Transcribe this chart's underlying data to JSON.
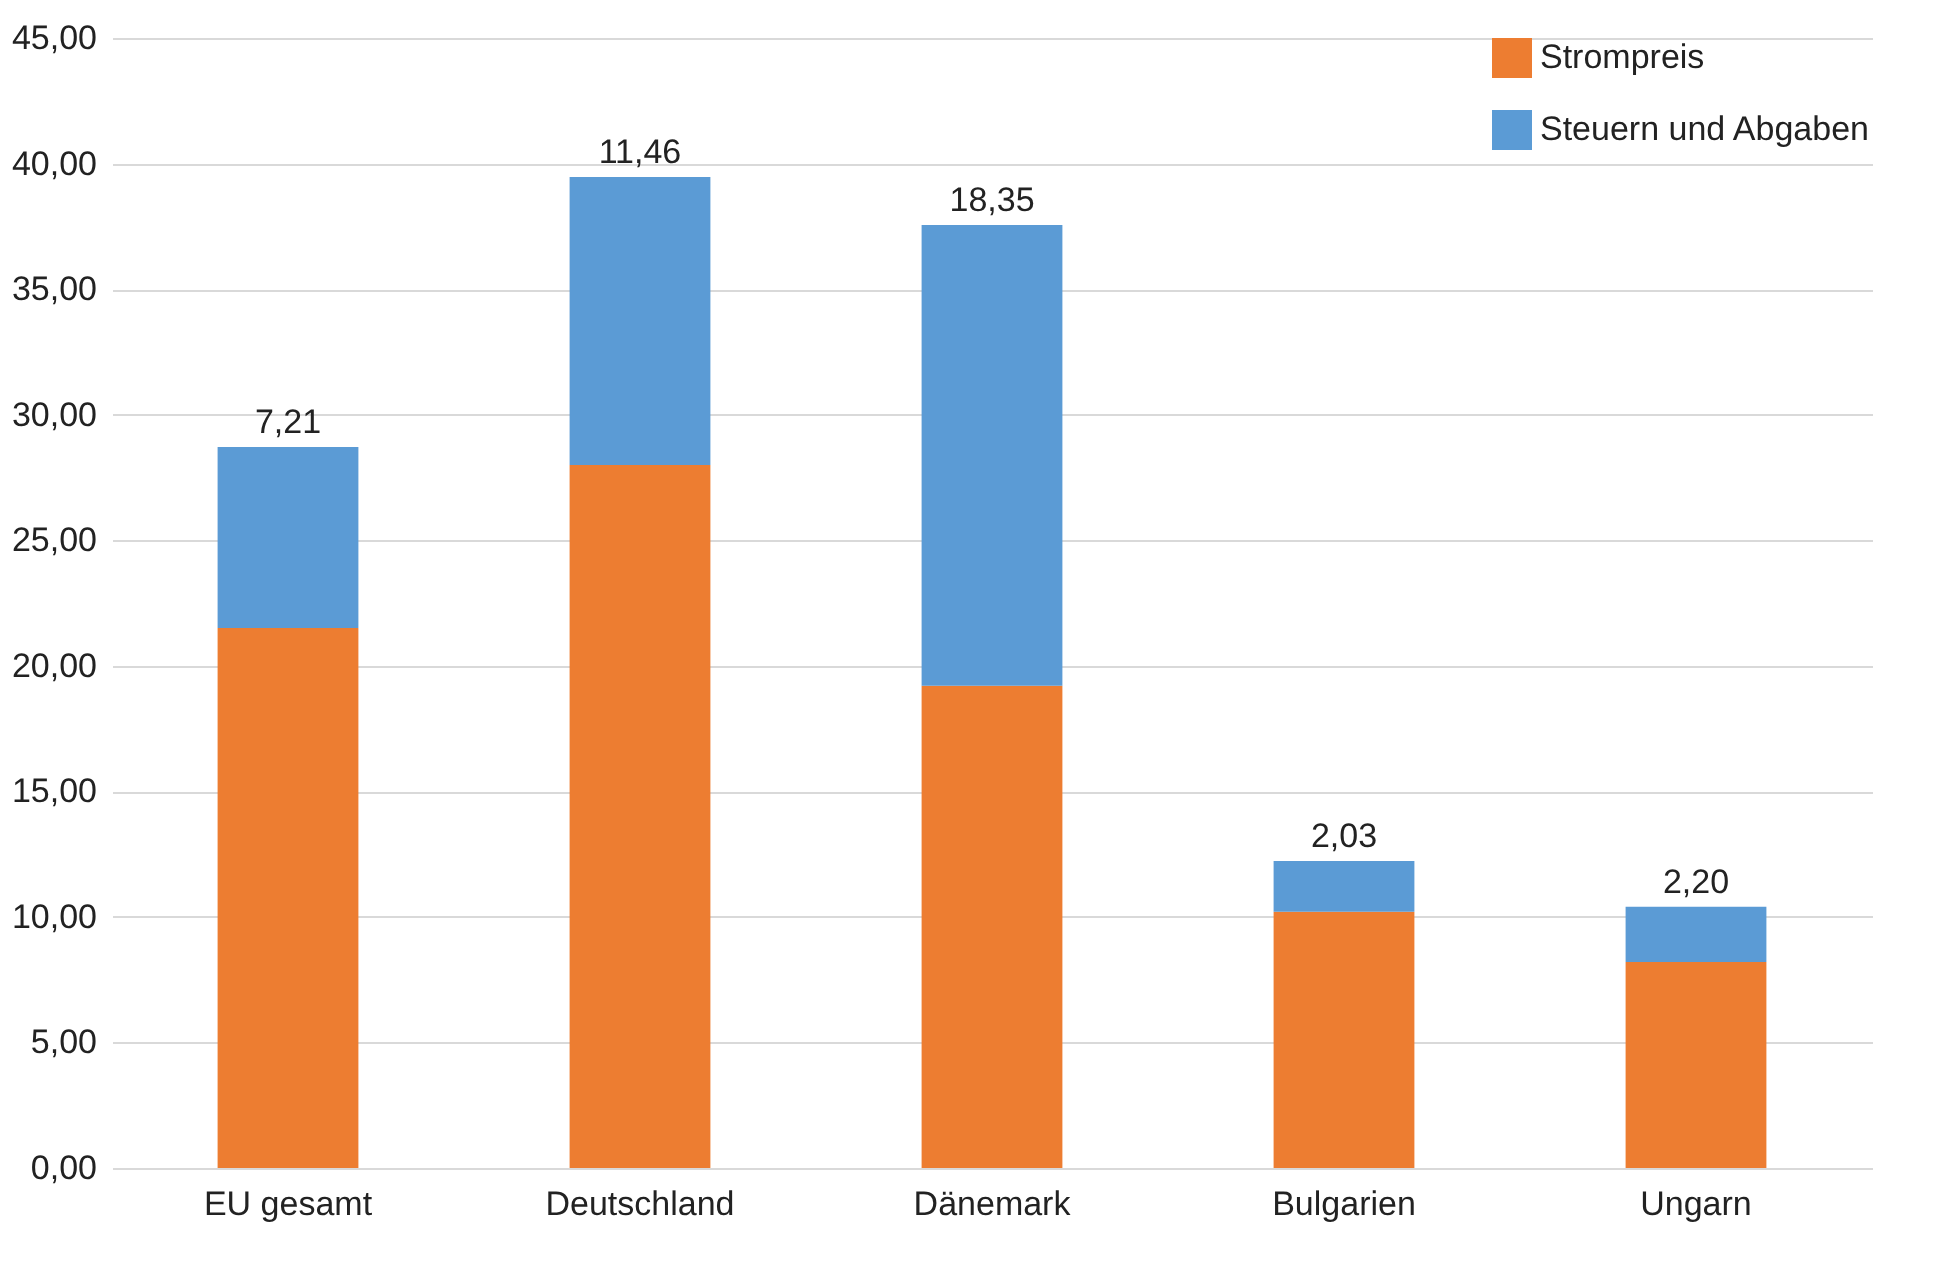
{
  "chart_data": {
    "type": "bar",
    "stacked": true,
    "categories": [
      "EU gesamt",
      "Deutschland",
      "Dänemark",
      "Bulgarien",
      "Ungarn"
    ],
    "series": [
      {
        "name": "Strompreis",
        "color": "#ed7d31",
        "values": [
          21.5,
          28.0,
          19.2,
          10.2,
          8.2
        ]
      },
      {
        "name": "Steuern und Abgaben",
        "color": "#5b9bd5",
        "values": [
          7.21,
          11.46,
          18.35,
          2.03,
          2.2
        ],
        "value_labels": [
          "7,21",
          "11,46",
          "18,35",
          "2,03",
          "2,20"
        ]
      }
    ],
    "ylim": [
      0,
      45
    ],
    "yticks": [
      {
        "value": 0,
        "label": "0,00"
      },
      {
        "value": 5,
        "label": "5,00"
      },
      {
        "value": 10,
        "label": "10,00"
      },
      {
        "value": 15,
        "label": "15,00"
      },
      {
        "value": 20,
        "label": "20,00"
      },
      {
        "value": 25,
        "label": "25,00"
      },
      {
        "value": 30,
        "label": "30,00"
      },
      {
        "value": 35,
        "label": "35,00"
      },
      {
        "value": 40,
        "label": "40,00"
      },
      {
        "value": 45,
        "label": "45,00"
      }
    ],
    "grid": "y",
    "legend": "top right"
  }
}
